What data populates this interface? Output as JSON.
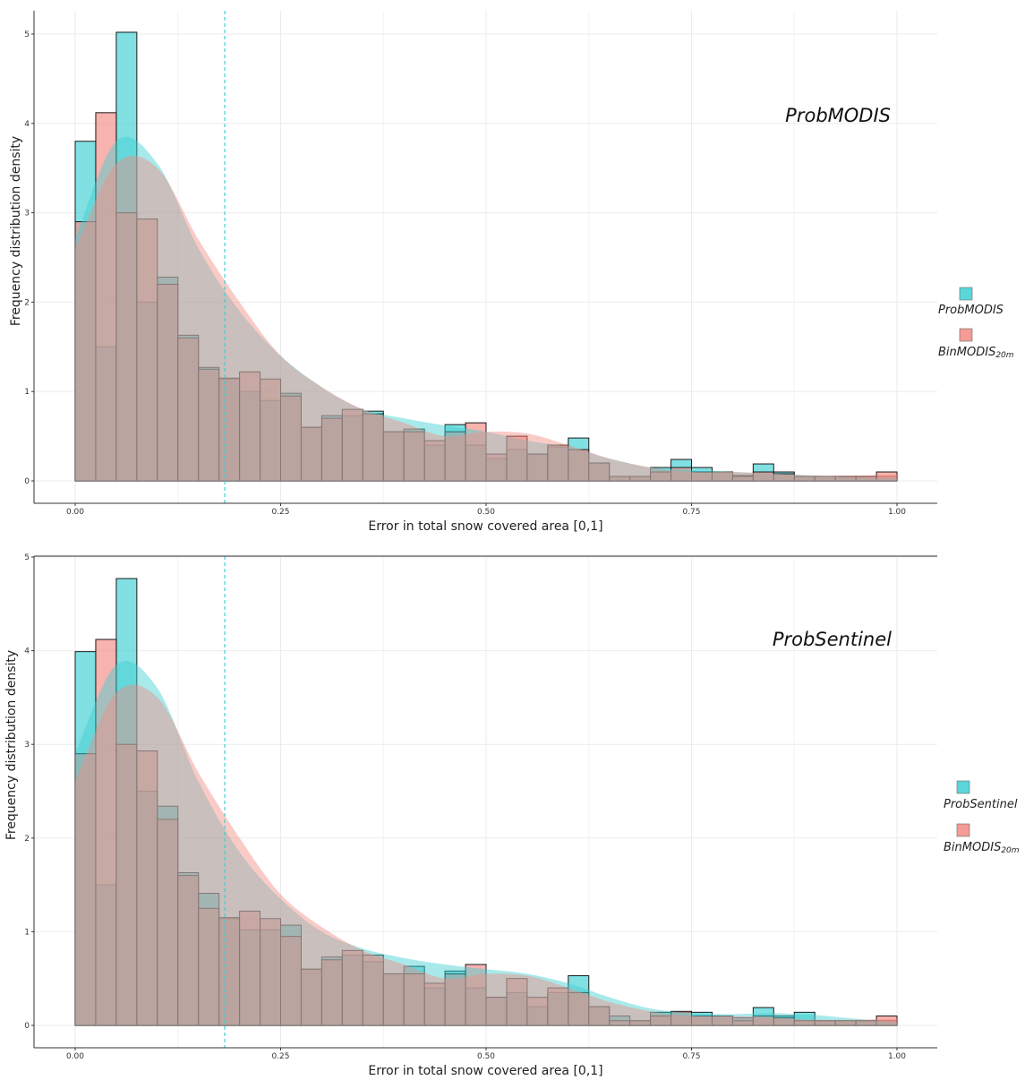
{
  "chart_data": [
    {
      "type": "bar",
      "panel_label": "ProbMODIS",
      "xlabel": "Error in total snow covered area [0,1]",
      "ylabel": "Frequency distribution density",
      "xlim": [
        0,
        1
      ],
      "ylim": [
        0,
        5
      ],
      "x_ticks": [
        "0.00",
        "0.25",
        "0.50",
        "0.75",
        "1.00"
      ],
      "y_ticks": [
        "0",
        "1",
        "2",
        "3",
        "4",
        "5"
      ],
      "bin_edges": [
        0.0,
        0.025,
        0.05,
        0.075,
        0.1,
        0.125,
        0.15,
        0.175,
        0.2,
        0.225,
        0.25,
        0.275,
        0.3,
        0.325,
        0.35,
        0.375,
        0.4,
        0.425,
        0.45,
        0.475,
        0.5,
        0.525,
        0.55,
        0.575,
        0.6,
        0.625,
        0.65,
        0.675,
        0.7,
        0.725,
        0.75,
        0.775,
        0.8,
        0.825,
        0.85,
        0.875,
        0.9,
        0.925,
        0.95,
        0.975,
        1.0
      ],
      "vline": 0.182,
      "legend": [
        {
          "label": "ProbMODIS",
          "sub": "",
          "color": "#3ECFD3"
        },
        {
          "label": "BinMODIS",
          "sub": "20m",
          "color": "#F28B82"
        }
      ],
      "series": [
        {
          "name": "ProbMODIS",
          "color": "#3ECFD3",
          "values": [
            3.8,
            1.5,
            5.02,
            2.0,
            2.28,
            1.63,
            1.27,
            1.14,
            1.0,
            0.9,
            0.98,
            0.6,
            0.73,
            0.73,
            0.78,
            0.55,
            0.58,
            0.4,
            0.63,
            0.4,
            0.25,
            0.35,
            0.3,
            0.38,
            0.48,
            0.2,
            0.05,
            0.05,
            0.15,
            0.24,
            0.15,
            0.1,
            0.06,
            0.19,
            0.1,
            0.05,
            0.05,
            0.05,
            0.05,
            0.05
          ],
          "density": [
            2.7,
            3.8,
            3.55,
            2.6,
            1.9,
            1.4,
            1.05,
            0.8,
            0.7,
            0.62,
            0.55,
            0.45,
            0.38,
            0.25,
            0.15,
            0.12,
            0.1,
            0.08,
            0.06,
            0.04,
            0.02
          ]
        },
        {
          "name": "BinMODIS20m",
          "color": "#F28B82",
          "values": [
            2.9,
            4.12,
            3.0,
            2.93,
            2.2,
            1.6,
            1.25,
            1.15,
            1.22,
            1.14,
            0.95,
            0.6,
            0.7,
            0.8,
            0.75,
            0.55,
            0.55,
            0.45,
            0.55,
            0.65,
            0.3,
            0.5,
            0.3,
            0.4,
            0.35,
            0.2,
            0.05,
            0.05,
            0.1,
            0.15,
            0.1,
            0.1,
            0.05,
            0.1,
            0.08,
            0.05,
            0.05,
            0.05,
            0.05,
            0.1
          ],
          "density": [
            2.6,
            3.55,
            3.5,
            2.7,
            2.0,
            1.4,
            1.05,
            0.8,
            0.65,
            0.5,
            0.55,
            0.53,
            0.4,
            0.25,
            0.15,
            0.1,
            0.1,
            0.08,
            0.06,
            0.06,
            0.07
          ]
        }
      ]
    },
    {
      "type": "bar",
      "panel_label": "ProbSentinel",
      "xlabel": "Error in total snow covered area [0,1]",
      "ylabel": "Frequency distribution density",
      "xlim": [
        0,
        1
      ],
      "ylim": [
        0,
        5
      ],
      "x_ticks": [
        "0.00",
        "0.25",
        "0.50",
        "0.75",
        "1.00"
      ],
      "y_ticks": [
        "0",
        "1",
        "2",
        "3",
        "4",
        "5"
      ],
      "bin_edges": [
        0.0,
        0.025,
        0.05,
        0.075,
        0.1,
        0.125,
        0.15,
        0.175,
        0.2,
        0.225,
        0.25,
        0.275,
        0.3,
        0.325,
        0.35,
        0.375,
        0.4,
        0.425,
        0.45,
        0.475,
        0.5,
        0.525,
        0.55,
        0.575,
        0.6,
        0.625,
        0.65,
        0.675,
        0.7,
        0.725,
        0.75,
        0.775,
        0.8,
        0.825,
        0.85,
        0.875,
        0.9,
        0.925,
        0.95,
        0.975,
        1.0
      ],
      "vline": 0.182,
      "legend": [
        {
          "label": "ProbSentinel",
          "sub": "",
          "color": "#3ECFD3"
        },
        {
          "label": "BinMODIS",
          "sub": "20m",
          "color": "#F28B82"
        }
      ],
      "series": [
        {
          "name": "ProbSentinel",
          "color": "#3ECFD3",
          "values": [
            3.99,
            1.5,
            4.77,
            2.5,
            2.34,
            1.63,
            1.41,
            1.14,
            1.02,
            1.02,
            1.07,
            0.6,
            0.73,
            0.75,
            0.68,
            0.55,
            0.63,
            0.4,
            0.58,
            0.4,
            0.3,
            0.35,
            0.2,
            0.35,
            0.53,
            0.2,
            0.1,
            0.05,
            0.14,
            0.14,
            0.14,
            0.1,
            0.08,
            0.19,
            0.1,
            0.14,
            0.05,
            0.05,
            0.05,
            0.05
          ],
          "density": [
            2.9,
            3.85,
            3.6,
            2.6,
            1.85,
            1.35,
            1.0,
            0.82,
            0.72,
            0.65,
            0.6,
            0.55,
            0.45,
            0.3,
            0.18,
            0.13,
            0.12,
            0.13,
            0.11,
            0.07,
            0.03
          ]
        },
        {
          "name": "BinMODIS20m",
          "color": "#F28B82",
          "values": [
            2.9,
            4.12,
            3.0,
            2.93,
            2.2,
            1.6,
            1.25,
            1.15,
            1.22,
            1.14,
            0.95,
            0.6,
            0.7,
            0.8,
            0.75,
            0.55,
            0.55,
            0.45,
            0.55,
            0.65,
            0.3,
            0.5,
            0.3,
            0.4,
            0.35,
            0.2,
            0.05,
            0.05,
            0.1,
            0.15,
            0.1,
            0.1,
            0.05,
            0.1,
            0.08,
            0.05,
            0.05,
            0.05,
            0.05,
            0.1
          ],
          "density": [
            2.6,
            3.55,
            3.5,
            2.7,
            2.0,
            1.4,
            1.05,
            0.8,
            0.65,
            0.5,
            0.55,
            0.53,
            0.4,
            0.25,
            0.15,
            0.1,
            0.1,
            0.08,
            0.06,
            0.06,
            0.07
          ]
        }
      ]
    }
  ]
}
